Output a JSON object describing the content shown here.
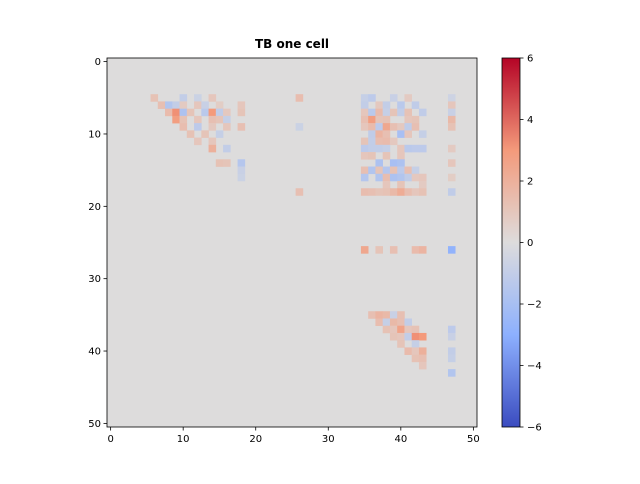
{
  "chart_data": {
    "type": "heatmap",
    "title": "TB one cell",
    "grid_size": 51,
    "colormap": "coolwarm",
    "vmin": -6,
    "vmax": 6,
    "background_value": 0,
    "xlim": [
      -0.5,
      50.5
    ],
    "ylim": [
      50.5,
      -0.5
    ],
    "x_ticks": [
      0,
      10,
      20,
      30,
      40,
      50
    ],
    "y_ticks": [
      0,
      10,
      20,
      30,
      40,
      50
    ],
    "colorbar_ticks": [
      -6,
      -4,
      -2,
      0,
      2,
      4,
      6
    ],
    "cells": [
      {
        "r": 5,
        "c": 6,
        "v": 1.2
      },
      {
        "r": 5,
        "c": 10,
        "v": -1.0
      },
      {
        "r": 5,
        "c": 12,
        "v": -0.7
      },
      {
        "r": 5,
        "c": 14,
        "v": 1.0
      },
      {
        "r": 5,
        "c": 26,
        "v": 1.4
      },
      {
        "r": 5,
        "c": 35,
        "v": -0.9
      },
      {
        "r": 5,
        "c": 36,
        "v": -1.2
      },
      {
        "r": 5,
        "c": 39,
        "v": -0.8
      },
      {
        "r": 5,
        "c": 41,
        "v": 0.8
      },
      {
        "r": 5,
        "c": 47,
        "v": -0.6
      },
      {
        "r": 6,
        "c": 7,
        "v": 1.3
      },
      {
        "r": 6,
        "c": 8,
        "v": -1.6
      },
      {
        "r": 6,
        "c": 9,
        "v": -1.0
      },
      {
        "r": 6,
        "c": 10,
        "v": 0.8
      },
      {
        "r": 6,
        "c": 12,
        "v": 1.0
      },
      {
        "r": 6,
        "c": 13,
        "v": -0.8
      },
      {
        "r": 6,
        "c": 15,
        "v": 0.7
      },
      {
        "r": 6,
        "c": 18,
        "v": 1.0
      },
      {
        "r": 6,
        "c": 35,
        "v": -1.0
      },
      {
        "r": 6,
        "c": 37,
        "v": 0.9
      },
      {
        "r": 6,
        "c": 38,
        "v": -1.0
      },
      {
        "r": 6,
        "c": 40,
        "v": -1.3
      },
      {
        "r": 6,
        "c": 42,
        "v": -1.1
      },
      {
        "r": 6,
        "c": 47,
        "v": 1.0
      },
      {
        "r": 7,
        "c": 8,
        "v": 1.5
      },
      {
        "r": 7,
        "c": 9,
        "v": 3.2
      },
      {
        "r": 7,
        "c": 10,
        "v": -1.8
      },
      {
        "r": 7,
        "c": 11,
        "v": 1.1
      },
      {
        "r": 7,
        "c": 13,
        "v": -1.3
      },
      {
        "r": 7,
        "c": 14,
        "v": 3.0
      },
      {
        "r": 7,
        "c": 15,
        "v": -1.1
      },
      {
        "r": 7,
        "c": 16,
        "v": 0.9
      },
      {
        "r": 7,
        "c": 18,
        "v": 1.1
      },
      {
        "r": 7,
        "c": 35,
        "v": 1.0
      },
      {
        "r": 7,
        "c": 36,
        "v": -1.3
      },
      {
        "r": 7,
        "c": 37,
        "v": 1.5
      },
      {
        "r": 7,
        "c": 38,
        "v": -0.9
      },
      {
        "r": 7,
        "c": 39,
        "v": 1.1
      },
      {
        "r": 7,
        "c": 40,
        "v": -1.0
      },
      {
        "r": 7,
        "c": 41,
        "v": 1.2
      },
      {
        "r": 7,
        "c": 43,
        "v": -1.1
      },
      {
        "r": 7,
        "c": 47,
        "v": -0.8
      },
      {
        "r": 8,
        "c": 9,
        "v": 2.8
      },
      {
        "r": 8,
        "c": 10,
        "v": 1.2
      },
      {
        "r": 8,
        "c": 12,
        "v": 1.0
      },
      {
        "r": 8,
        "c": 14,
        "v": 1.3
      },
      {
        "r": 8,
        "c": 15,
        "v": 1.1
      },
      {
        "r": 8,
        "c": 16,
        "v": -0.9
      },
      {
        "r": 8,
        "c": 35,
        "v": 1.3
      },
      {
        "r": 8,
        "c": 36,
        "v": 2.8
      },
      {
        "r": 8,
        "c": 37,
        "v": 1.1
      },
      {
        "r": 8,
        "c": 38,
        "v": 1.2
      },
      {
        "r": 8,
        "c": 41,
        "v": 1.0
      },
      {
        "r": 8,
        "c": 42,
        "v": 1.1
      },
      {
        "r": 8,
        "c": 47,
        "v": 1.6
      },
      {
        "r": 9,
        "c": 10,
        "v": 1.4
      },
      {
        "r": 9,
        "c": 12,
        "v": -1.2
      },
      {
        "r": 9,
        "c": 14,
        "v": 0.9
      },
      {
        "r": 9,
        "c": 16,
        "v": 1.0
      },
      {
        "r": 9,
        "c": 18,
        "v": 1.3
      },
      {
        "r": 9,
        "c": 26,
        "v": -0.7
      },
      {
        "r": 9,
        "c": 35,
        "v": 1.0
      },
      {
        "r": 9,
        "c": 36,
        "v": 1.5
      },
      {
        "r": 9,
        "c": 37,
        "v": -1.2
      },
      {
        "r": 9,
        "c": 38,
        "v": 2.4
      },
      {
        "r": 9,
        "c": 39,
        "v": 1.3
      },
      {
        "r": 9,
        "c": 40,
        "v": 0.9
      },
      {
        "r": 9,
        "c": 41,
        "v": -1.1
      },
      {
        "r": 9,
        "c": 42,
        "v": 1.3
      },
      {
        "r": 9,
        "c": 47,
        "v": 1.2
      },
      {
        "r": 10,
        "c": 11,
        "v": 1.2
      },
      {
        "r": 10,
        "c": 13,
        "v": 1.1
      },
      {
        "r": 10,
        "c": 15,
        "v": -0.9
      },
      {
        "r": 10,
        "c": 36,
        "v": -1.1
      },
      {
        "r": 10,
        "c": 37,
        "v": 1.8
      },
      {
        "r": 10,
        "c": 38,
        "v": 1.3
      },
      {
        "r": 10,
        "c": 40,
        "v": -2.0
      },
      {
        "r": 10,
        "c": 41,
        "v": 1.0
      },
      {
        "r": 10,
        "c": 43,
        "v": -0.9
      },
      {
        "r": 11,
        "c": 12,
        "v": 1.0
      },
      {
        "r": 11,
        "c": 14,
        "v": 1.0
      },
      {
        "r": 11,
        "c": 35,
        "v": 1.1
      },
      {
        "r": 11,
        "c": 36,
        "v": -1.0
      },
      {
        "r": 11,
        "c": 37,
        "v": 1.4
      },
      {
        "r": 11,
        "c": 38,
        "v": 1.5
      },
      {
        "r": 11,
        "c": 39,
        "v": 0.9
      },
      {
        "r": 12,
        "c": 14,
        "v": 2.0
      },
      {
        "r": 12,
        "c": 16,
        "v": -1.0
      },
      {
        "r": 12,
        "c": 35,
        "v": -1.2
      },
      {
        "r": 12,
        "c": 36,
        "v": -1.0
      },
      {
        "r": 12,
        "c": 37,
        "v": -1.0
      },
      {
        "r": 12,
        "c": 38,
        "v": -0.9
      },
      {
        "r": 12,
        "c": 40,
        "v": 1.0
      },
      {
        "r": 12,
        "c": 41,
        "v": -1.3
      },
      {
        "r": 12,
        "c": 42,
        "v": -1.2
      },
      {
        "r": 12,
        "c": 43,
        "v": -1.2
      },
      {
        "r": 12,
        "c": 47,
        "v": 0.8
      },
      {
        "r": 13,
        "c": 35,
        "v": 1.0
      },
      {
        "r": 13,
        "c": 36,
        "v": 1.1
      },
      {
        "r": 13,
        "c": 38,
        "v": 1.1
      },
      {
        "r": 13,
        "c": 40,
        "v": 1.0
      },
      {
        "r": 14,
        "c": 15,
        "v": 1.2
      },
      {
        "r": 14,
        "c": 16,
        "v": 1.1
      },
      {
        "r": 14,
        "c": 18,
        "v": -1.5
      },
      {
        "r": 14,
        "c": 37,
        "v": -1.8
      },
      {
        "r": 14,
        "c": 39,
        "v": -2.0
      },
      {
        "r": 14,
        "c": 40,
        "v": -1.8
      },
      {
        "r": 14,
        "c": 47,
        "v": 1.0
      },
      {
        "r": 15,
        "c": 18,
        "v": -0.8
      },
      {
        "r": 15,
        "c": 35,
        "v": 1.3
      },
      {
        "r": 15,
        "c": 36,
        "v": -1.6
      },
      {
        "r": 15,
        "c": 37,
        "v": 1.1
      },
      {
        "r": 15,
        "c": 38,
        "v": -1.5
      },
      {
        "r": 15,
        "c": 39,
        "v": 1.2
      },
      {
        "r": 15,
        "c": 40,
        "v": -1.2
      },
      {
        "r": 15,
        "c": 41,
        "v": 1.3
      },
      {
        "r": 15,
        "c": 42,
        "v": -0.9
      },
      {
        "r": 16,
        "c": 18,
        "v": -0.7
      },
      {
        "r": 16,
        "c": 35,
        "v": -1.5
      },
      {
        "r": 16,
        "c": 37,
        "v": -1.6
      },
      {
        "r": 16,
        "c": 38,
        "v": 1.4
      },
      {
        "r": 16,
        "c": 39,
        "v": -1.8
      },
      {
        "r": 16,
        "c": 40,
        "v": -1.6
      },
      {
        "r": 16,
        "c": 41,
        "v": -1.1
      },
      {
        "r": 16,
        "c": 42,
        "v": 0.9
      },
      {
        "r": 16,
        "c": 43,
        "v": 1.0
      },
      {
        "r": 16,
        "c": 47,
        "v": 0.7
      },
      {
        "r": 17,
        "c": 38,
        "v": 1.0
      },
      {
        "r": 17,
        "c": 40,
        "v": 1.1
      },
      {
        "r": 17,
        "c": 43,
        "v": 0.8
      },
      {
        "r": 18,
        "c": 26,
        "v": 1.3
      },
      {
        "r": 18,
        "c": 35,
        "v": 1.4
      },
      {
        "r": 18,
        "c": 36,
        "v": 1.3
      },
      {
        "r": 18,
        "c": 37,
        "v": 1.1
      },
      {
        "r": 18,
        "c": 38,
        "v": 1.2
      },
      {
        "r": 18,
        "c": 39,
        "v": 1.6
      },
      {
        "r": 18,
        "c": 40,
        "v": 2.2
      },
      {
        "r": 18,
        "c": 41,
        "v": 1.4
      },
      {
        "r": 18,
        "c": 42,
        "v": 1.0
      },
      {
        "r": 18,
        "c": 43,
        "v": 1.2
      },
      {
        "r": 18,
        "c": 47,
        "v": -1.1
      },
      {
        "r": 26,
        "c": 35,
        "v": 2.4
      },
      {
        "r": 26,
        "c": 37,
        "v": 1.1
      },
      {
        "r": 26,
        "c": 39,
        "v": 1.3
      },
      {
        "r": 26,
        "c": 42,
        "v": 1.5
      },
      {
        "r": 26,
        "c": 43,
        "v": 1.8
      },
      {
        "r": 26,
        "c": 47,
        "v": -2.8
      },
      {
        "r": 35,
        "c": 36,
        "v": 1.3
      },
      {
        "r": 35,
        "c": 37,
        "v": 1.8
      },
      {
        "r": 35,
        "c": 38,
        "v": 1.6
      },
      {
        "r": 35,
        "c": 39,
        "v": -0.8
      },
      {
        "r": 35,
        "c": 40,
        "v": 1.3
      },
      {
        "r": 36,
        "c": 37,
        "v": 1.4
      },
      {
        "r": 36,
        "c": 38,
        "v": -0.9
      },
      {
        "r": 36,
        "c": 39,
        "v": 1.6
      },
      {
        "r": 36,
        "c": 40,
        "v": 1.3
      },
      {
        "r": 36,
        "c": 41,
        "v": -1.0
      },
      {
        "r": 37,
        "c": 38,
        "v": 1.2
      },
      {
        "r": 37,
        "c": 39,
        "v": 1.0
      },
      {
        "r": 37,
        "c": 40,
        "v": 2.6
      },
      {
        "r": 37,
        "c": 41,
        "v": 1.0
      },
      {
        "r": 37,
        "c": 42,
        "v": 1.2
      },
      {
        "r": 37,
        "c": 47,
        "v": -1.2
      },
      {
        "r": 38,
        "c": 39,
        "v": 1.1
      },
      {
        "r": 38,
        "c": 40,
        "v": 1.0
      },
      {
        "r": 38,
        "c": 41,
        "v": -1.0
      },
      {
        "r": 38,
        "c": 42,
        "v": 3.2
      },
      {
        "r": 38,
        "c": 43,
        "v": 3.0
      },
      {
        "r": 38,
        "c": 47,
        "v": -0.8
      },
      {
        "r": 39,
        "c": 40,
        "v": 1.1
      },
      {
        "r": 39,
        "c": 42,
        "v": -0.9
      },
      {
        "r": 40,
        "c": 41,
        "v": 1.5
      },
      {
        "r": 40,
        "c": 42,
        "v": 1.0
      },
      {
        "r": 40,
        "c": 43,
        "v": 2.0
      },
      {
        "r": 40,
        "c": 47,
        "v": -1.0
      },
      {
        "r": 41,
        "c": 42,
        "v": 1.2
      },
      {
        "r": 41,
        "c": 43,
        "v": 1.3
      },
      {
        "r": 41,
        "c": 47,
        "v": -0.9
      },
      {
        "r": 42,
        "c": 43,
        "v": 1.0
      },
      {
        "r": 43,
        "c": 47,
        "v": -1.6
      }
    ]
  }
}
